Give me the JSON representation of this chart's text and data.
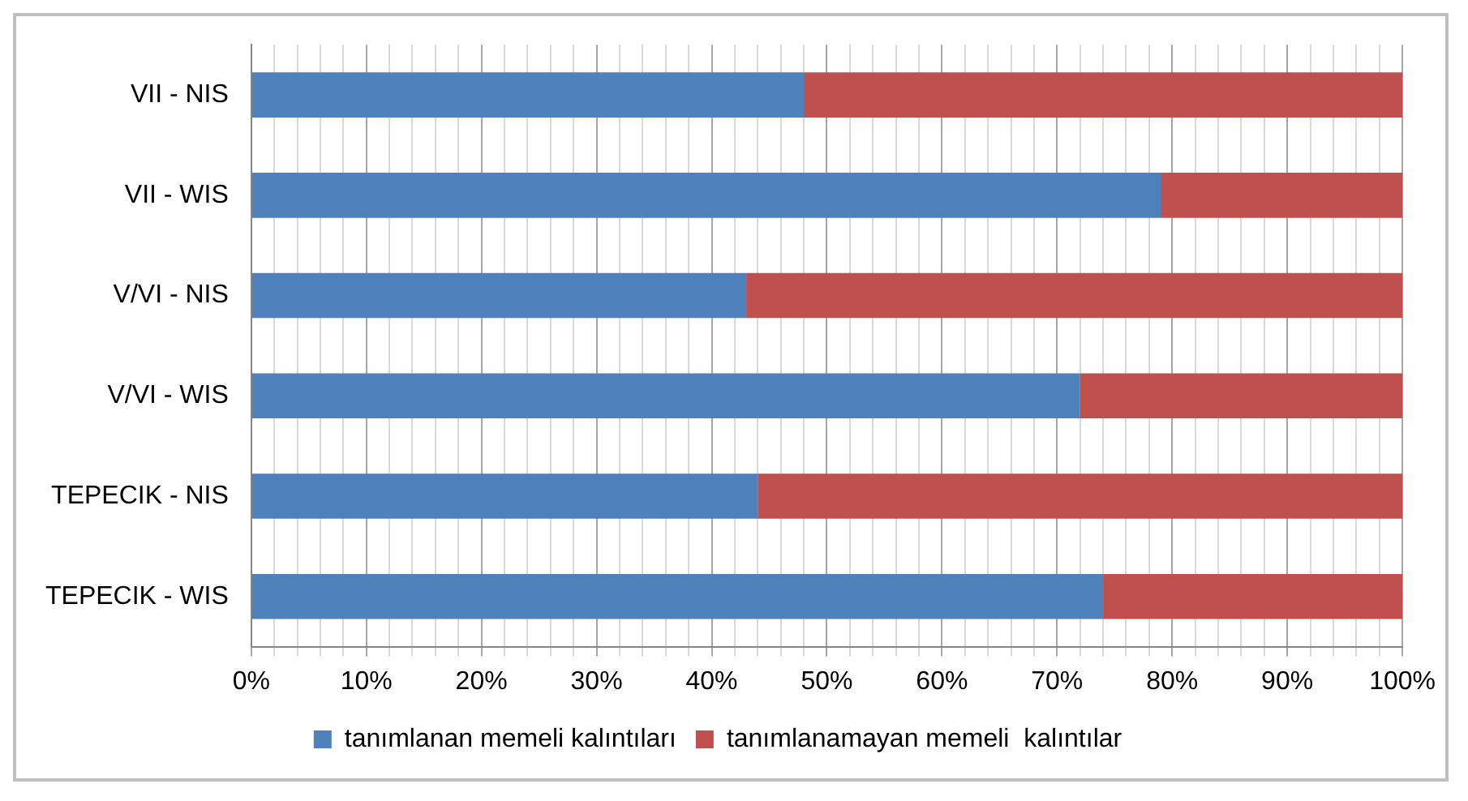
{
  "chart_data": {
    "type": "bar",
    "orientation": "horizontal",
    "stacked": true,
    "categories": [
      "VII - NIS",
      "VII - WIS",
      "V/VI - NIS",
      "V/VI - WIS",
      "TEPECIK - NIS",
      "TEPECIK - WIS"
    ],
    "series": [
      {
        "name": "tanımlanan memeli kalıntıları",
        "color": "#4f81bd",
        "values": [
          48,
          79,
          43,
          72,
          44,
          74
        ]
      },
      {
        "name": "tanımlanamayan memeli  kalıntılar",
        "color": "#c0504d",
        "values": [
          52,
          21,
          57,
          28,
          56,
          26
        ]
      }
    ],
    "xlim": [
      0,
      100
    ],
    "xticks": [
      {
        "value": 0,
        "label": "0%"
      },
      {
        "value": 2,
        "label": null
      },
      {
        "value": 4,
        "label": null
      },
      {
        "value": 6,
        "label": null
      },
      {
        "value": 8,
        "label": null
      },
      {
        "value": 10,
        "label": "10%"
      },
      {
        "value": 12,
        "label": null
      },
      {
        "value": 14,
        "label": null
      },
      {
        "value": 16,
        "label": null
      },
      {
        "value": 18,
        "label": null
      },
      {
        "value": 20,
        "label": "20%"
      },
      {
        "value": 22,
        "label": null
      },
      {
        "value": 24,
        "label": null
      },
      {
        "value": 26,
        "label": null
      },
      {
        "value": 28,
        "label": null
      },
      {
        "value": 30,
        "label": "30%"
      },
      {
        "value": 32,
        "label": null
      },
      {
        "value": 34,
        "label": null
      },
      {
        "value": 36,
        "label": null
      },
      {
        "value": 38,
        "label": null
      },
      {
        "value": 40,
        "label": "40%"
      },
      {
        "value": 42,
        "label": null
      },
      {
        "value": 44,
        "label": null
      },
      {
        "value": 46,
        "label": null
      },
      {
        "value": 48,
        "label": null
      },
      {
        "value": 50,
        "label": "50%"
      },
      {
        "value": 52,
        "label": null
      },
      {
        "value": 54,
        "label": null
      },
      {
        "value": 56,
        "label": null
      },
      {
        "value": 58,
        "label": null
      },
      {
        "value": 60,
        "label": "60%"
      },
      {
        "value": 62,
        "label": null
      },
      {
        "value": 64,
        "label": null
      },
      {
        "value": 66,
        "label": null
      },
      {
        "value": 68,
        "label": null
      },
      {
        "value": 70,
        "label": "70%"
      },
      {
        "value": 72,
        "label": null
      },
      {
        "value": 74,
        "label": null
      },
      {
        "value": 76,
        "label": null
      },
      {
        "value": 78,
        "label": null
      },
      {
        "value": 80,
        "label": "80%"
      },
      {
        "value": 82,
        "label": null
      },
      {
        "value": 84,
        "label": null
      },
      {
        "value": 86,
        "label": null
      },
      {
        "value": 88,
        "label": null
      },
      {
        "value": 90,
        "label": "90%"
      },
      {
        "value": 92,
        "label": null
      },
      {
        "value": 94,
        "label": null
      },
      {
        "value": 96,
        "label": null
      },
      {
        "value": 98,
        "label": null
      },
      {
        "value": 100,
        "label": "100%"
      }
    ],
    "grid": "x",
    "legend": "bottom"
  }
}
